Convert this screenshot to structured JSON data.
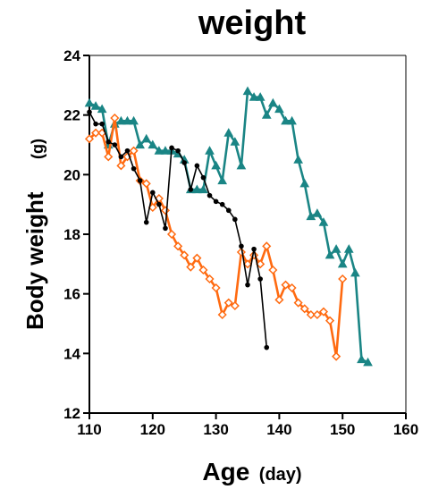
{
  "chart_data": {
    "type": "line",
    "title": "weight",
    "ylabel": "Body weight",
    "ylabel_unit": "(g)",
    "xlabel": "Age",
    "xlabel_unit": "(day)",
    "xlim": [
      110,
      160
    ],
    "ylim": [
      12,
      24
    ],
    "x_ticks": [
      110,
      120,
      130,
      140,
      150,
      160
    ],
    "y_ticks": [
      12,
      14,
      16,
      18,
      20,
      22,
      24
    ],
    "grid": false,
    "legend": "none",
    "series": [
      {
        "color": "#1a8585",
        "marker": "triangle",
        "x": [
          110,
          111,
          112,
          113,
          114,
          115,
          116,
          117,
          118,
          119,
          120,
          121,
          122,
          123,
          124,
          125,
          126,
          127,
          128,
          129,
          130,
          131,
          132,
          133,
          134,
          135,
          136,
          137,
          138,
          139,
          140,
          141,
          142,
          143,
          144,
          145,
          146,
          147,
          148,
          149,
          150,
          151,
          152,
          153,
          154
        ],
        "y": [
          22.4,
          22.3,
          22.2,
          21.0,
          21.7,
          21.8,
          21.8,
          21.8,
          21.0,
          21.2,
          21.0,
          20.8,
          20.8,
          20.8,
          20.7,
          20.5,
          19.5,
          19.5,
          19.5,
          20.8,
          20.3,
          19.8,
          21.4,
          21.1,
          20.3,
          22.8,
          22.6,
          22.6,
          22.0,
          22.4,
          22.2,
          21.8,
          21.8,
          20.5,
          19.7,
          18.6,
          18.7,
          18.4,
          17.3,
          17.5,
          17.0,
          17.5,
          16.7,
          13.8,
          13.7
        ]
      },
      {
        "color": "#ff6a10",
        "marker": "diamond-open",
        "x": [
          110,
          111,
          112,
          113,
          114,
          115,
          116,
          117,
          118,
          119,
          120,
          121,
          122,
          123,
          124,
          125,
          126,
          127,
          128,
          129,
          130,
          131,
          132,
          133,
          134,
          135,
          136,
          137,
          138,
          139,
          140,
          141,
          142,
          143,
          144,
          145,
          146,
          147,
          148,
          149,
          150
        ],
        "y": [
          21.2,
          21.4,
          21.4,
          20.6,
          21.9,
          20.3,
          20.6,
          20.8,
          19.8,
          19.7,
          18.9,
          19.2,
          18.8,
          18.0,
          17.6,
          17.3,
          16.9,
          17.2,
          16.8,
          16.5,
          16.2,
          15.3,
          15.7,
          15.6,
          17.4,
          17.0,
          17.3,
          17.0,
          17.6,
          16.8,
          15.8,
          16.3,
          16.2,
          15.7,
          15.5,
          15.3,
          15.3,
          15.4,
          15.1,
          13.9,
          16.5
        ]
      },
      {
        "color": "#000000",
        "marker": "circle-filled",
        "x": [
          110,
          111,
          112,
          113,
          114,
          115,
          116,
          117,
          118,
          119,
          120,
          121,
          122,
          123,
          124,
          125,
          126,
          127,
          128,
          129,
          130,
          131,
          132,
          133,
          134,
          135,
          136,
          137,
          138
        ],
        "y": [
          22.1,
          21.7,
          21.7,
          21.1,
          21.0,
          20.6,
          20.8,
          20.2,
          19.8,
          18.4,
          19.4,
          19.0,
          18.2,
          20.9,
          20.8,
          20.4,
          19.5,
          20.3,
          19.9,
          19.3,
          19.1,
          19.0,
          18.8,
          18.5,
          17.6,
          16.3,
          17.5,
          16.5,
          14.2
        ]
      }
    ]
  }
}
